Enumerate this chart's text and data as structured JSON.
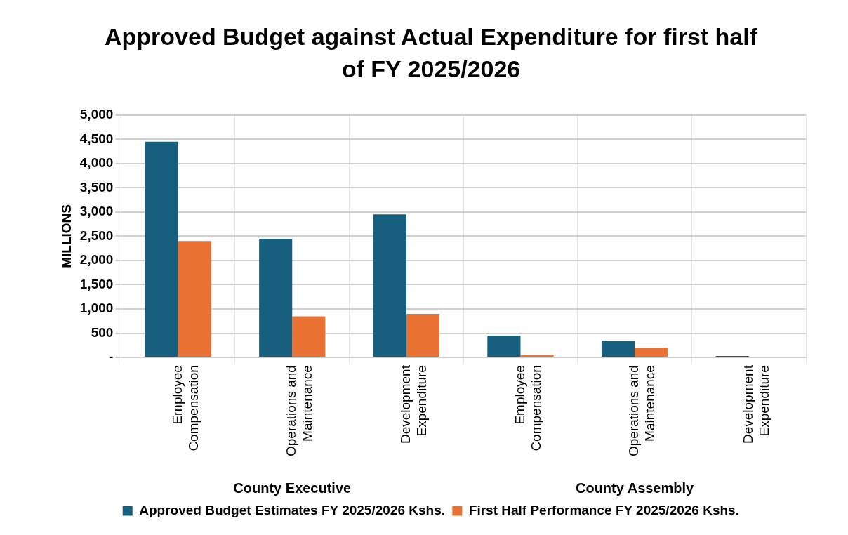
{
  "chart_data": {
    "type": "bar",
    "title": "Approved Budget against Actual Expenditure for first half of FY 2025/2026",
    "categories": [
      "Employee Compensation",
      "Operations and Maintenance",
      "Development Expenditure",
      "Employee Compensation",
      "Operations and Maintenance",
      "Development Expenditure"
    ],
    "series": [
      {
        "name": "Approved Budget Estimates FY 2025/2026 Kshs.",
        "color": "#175f7f",
        "values": [
          4450,
          2450,
          2950,
          450,
          350,
          30
        ]
      },
      {
        "name": "First Half Performance FY 2025/2026 Kshs.",
        "color": "#e97132",
        "values": [
          2400,
          850,
          900,
          60,
          200,
          null
        ]
      }
    ],
    "ylabel": "MILLIONS",
    "annotations": [
      "County Executive",
      "County Assembly"
    ],
    "ylim": [
      0,
      5000
    ],
    "yticks": [
      {
        "value": 0,
        "label": "-"
      },
      500,
      {
        "value": 1000,
        "label": "1,000"
      },
      {
        "value": 1500,
        "label": "1,500"
      },
      {
        "value": 2000,
        "label": "2,000"
      },
      {
        "value": 2500,
        "label": "2,500"
      },
      {
        "value": 3000,
        "label": "3,000"
      },
      {
        "value": 3500,
        "label": "3,500"
      },
      {
        "value": 4000,
        "label": "4,000"
      },
      {
        "value": 4500,
        "label": "4,500"
      },
      {
        "value": 5000,
        "label": "5,000"
      }
    ],
    "grid": true,
    "legend": "bottom"
  }
}
